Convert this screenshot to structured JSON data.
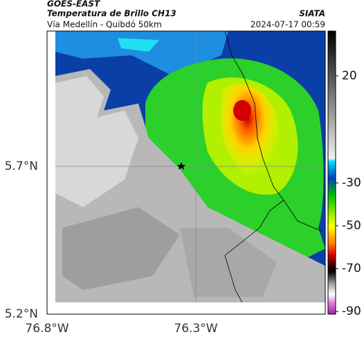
{
  "header": {
    "satellite": "GOES-EAST",
    "product": "Temperatura de Brillo CH13",
    "source": "SIATA",
    "route": "Vía Medellín - Quibdó 50km",
    "timestamp": "2024-07-17 00:59"
  },
  "axes": {
    "lat_labels": [
      "5.7°N",
      "5.2°N"
    ],
    "lon_labels": [
      "76.8°W",
      "76.3°W"
    ]
  },
  "colorbar": {
    "ticks": [
      20,
      -30,
      -50,
      -70,
      -90
    ]
  }
}
